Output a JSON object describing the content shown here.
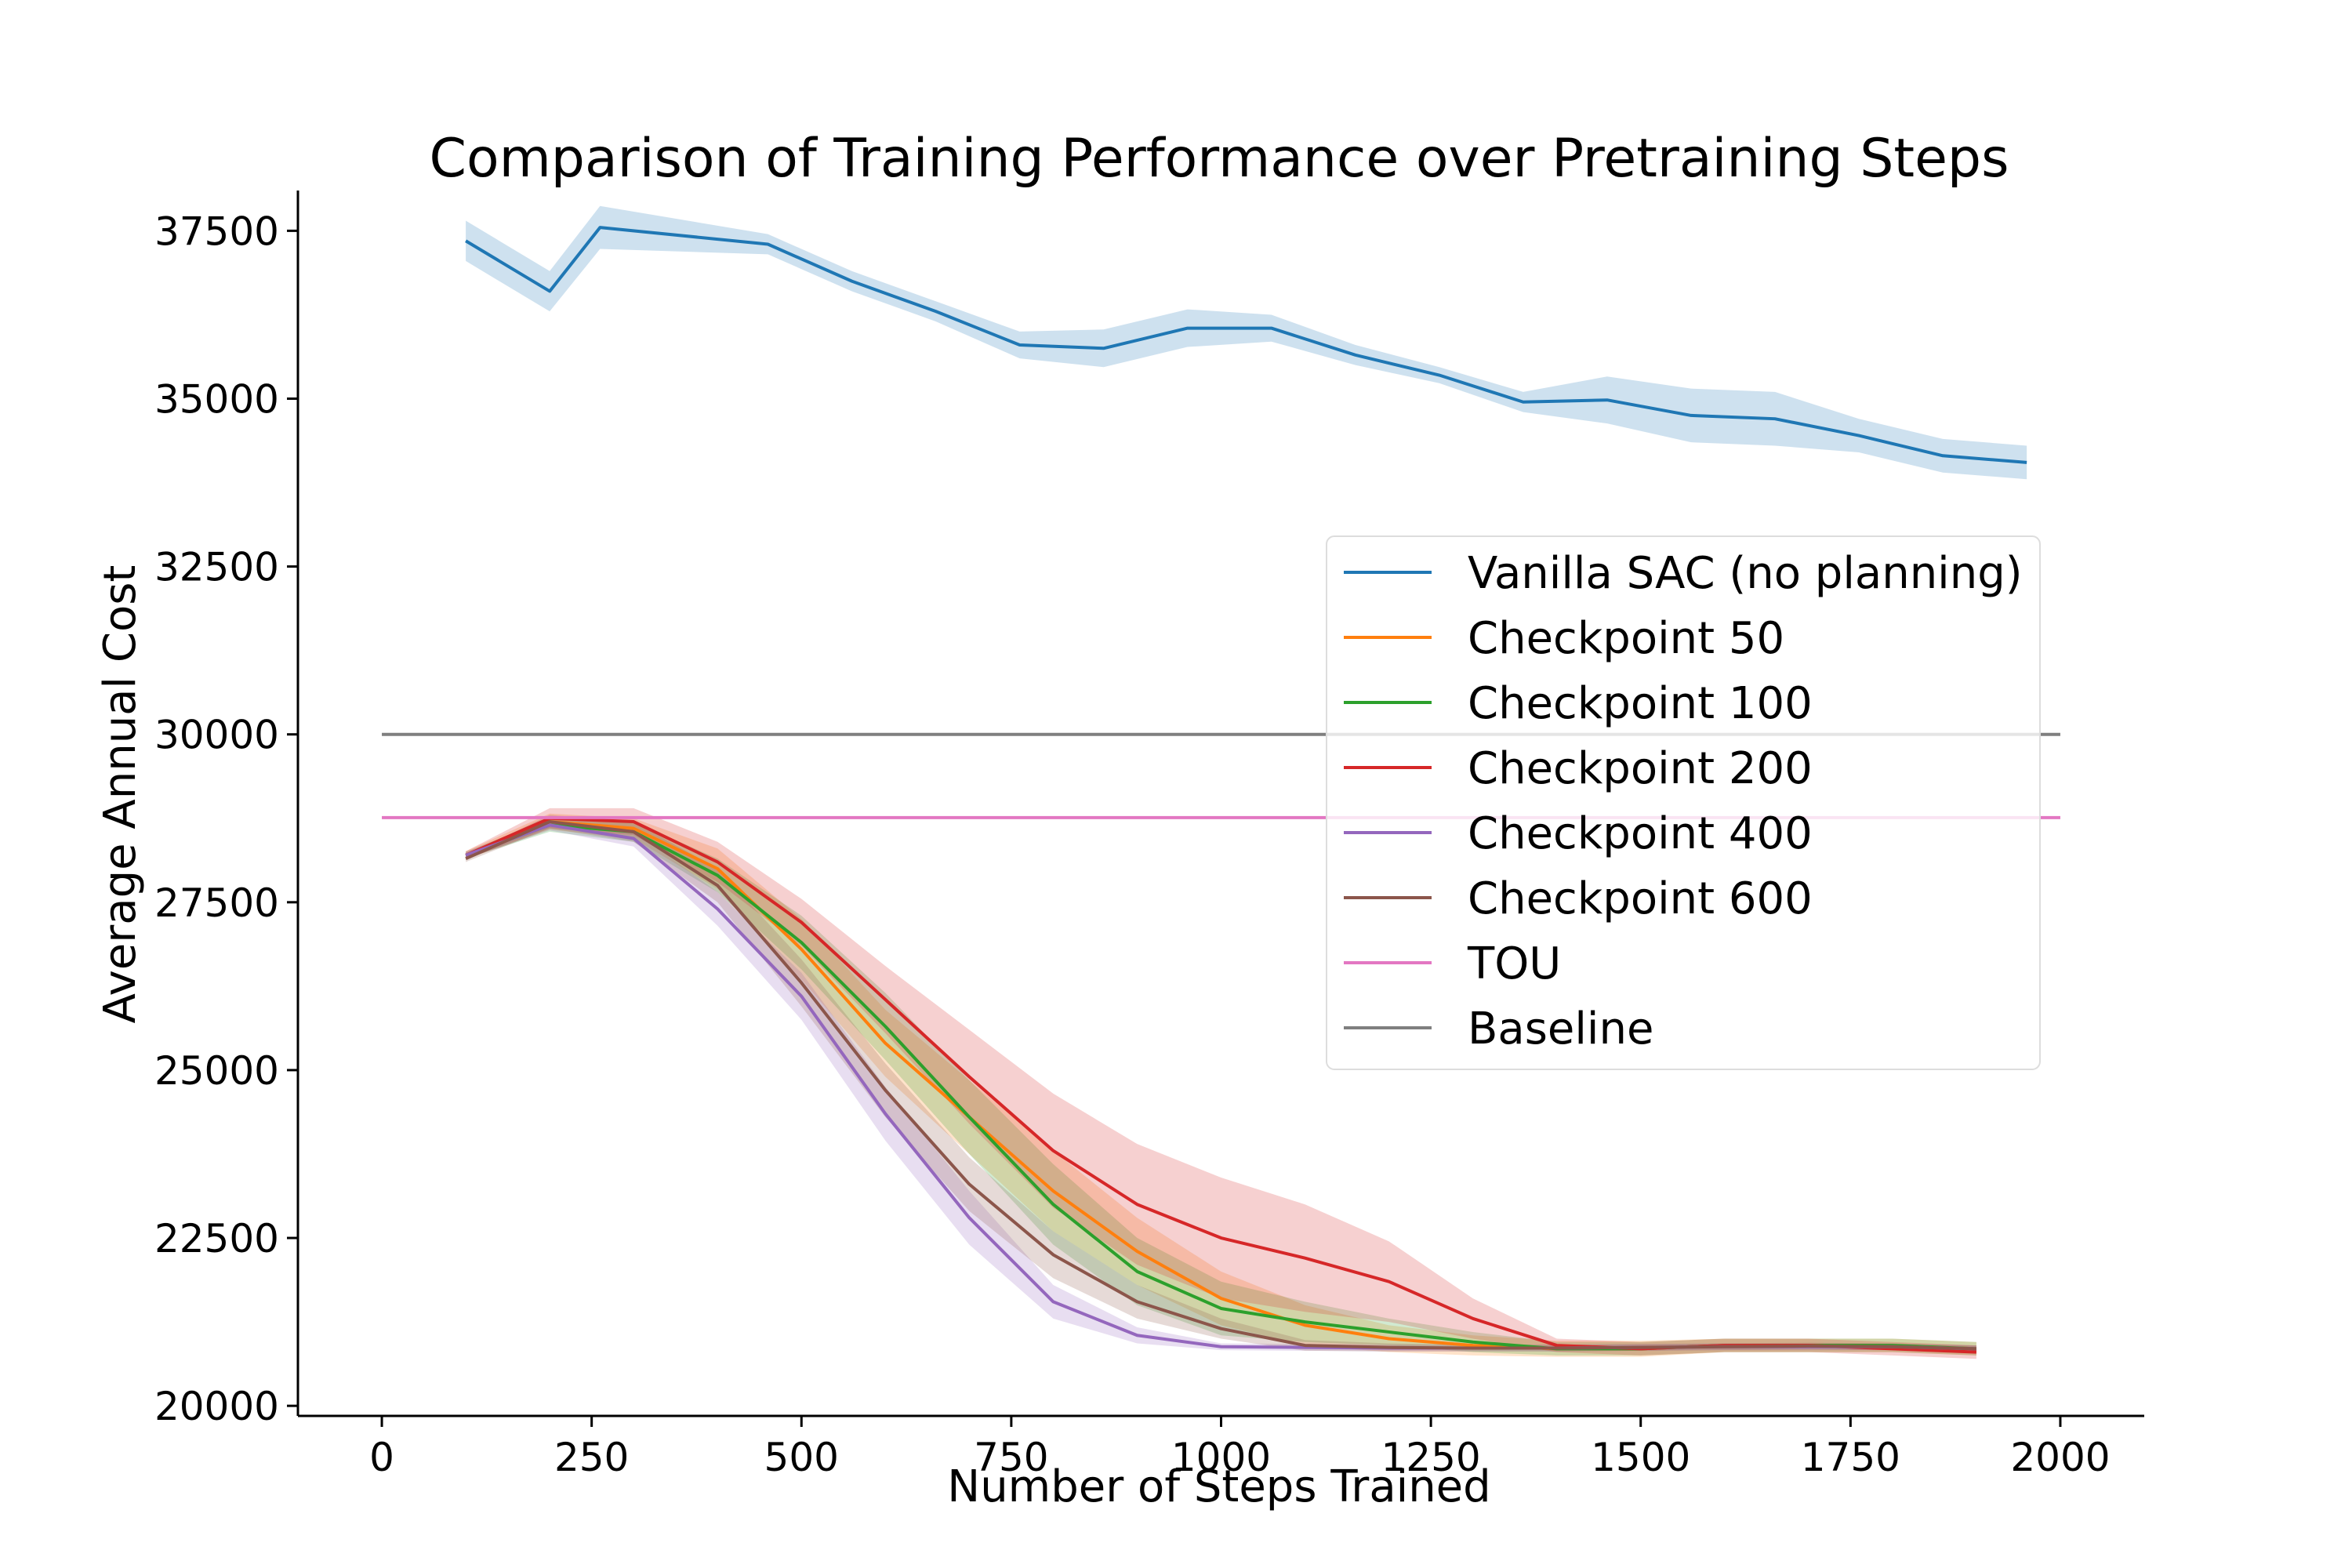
{
  "chart_data": {
    "type": "line",
    "title": "Comparison of Training Performance over Pretraining Steps",
    "xlabel": "Number of Steps Trained",
    "ylabel": "Average Annual Cost",
    "xlim": [
      -100,
      2100
    ],
    "ylim": [
      19850,
      38100
    ],
    "xticks": [
      0,
      250,
      500,
      750,
      1000,
      1250,
      1500,
      1750,
      2000
    ],
    "yticks": [
      20000,
      22500,
      25000,
      27500,
      30000,
      32500,
      35000,
      37500
    ],
    "legend_position": "center-right",
    "series": [
      {
        "name": "Vanilla SAC (no planning)",
        "color": "#1f77b4",
        "x": [
          100,
          200,
          260,
          460,
          560,
          660,
          760,
          860,
          960,
          1060,
          1160,
          1260,
          1360,
          1460,
          1560,
          1660,
          1760,
          1860,
          1960
        ],
        "y": [
          37350,
          36600,
          37550,
          37300,
          36750,
          36300,
          35800,
          35750,
          36050,
          36050,
          35650,
          35350,
          34950,
          34980,
          34750,
          34700,
          34450,
          34150,
          34050
        ],
        "band": [
          300,
          300,
          320,
          150,
          150,
          150,
          200,
          280,
          280,
          200,
          150,
          120,
          150,
          350,
          400,
          400,
          250,
          250,
          250
        ]
      },
      {
        "name": "Checkpoint 50",
        "color": "#ff7f0e",
        "x": [
          100,
          200,
          300,
          400,
          500,
          600,
          700,
          800,
          900,
          1000,
          1100,
          1200,
          1300,
          1400,
          1500,
          1600,
          1700,
          1800,
          1900
        ],
        "y": [
          28200,
          28700,
          28600,
          28000,
          26800,
          25400,
          24300,
          23200,
          22300,
          21600,
          21200,
          21000,
          20900,
          20850,
          20850,
          20900,
          20900,
          20900,
          20850
        ],
        "band": [
          60,
          120,
          150,
          300,
          450,
          500,
          550,
          600,
          500,
          400,
          300,
          200,
          150,
          120,
          120,
          100,
          100,
          100,
          100
        ]
      },
      {
        "name": "Checkpoint 100",
        "color": "#2ca02c",
        "x": [
          100,
          200,
          300,
          400,
          500,
          600,
          700,
          800,
          900,
          1000,
          1100,
          1200,
          1300,
          1400,
          1500,
          1600,
          1700,
          1800,
          1900
        ],
        "y": [
          28200,
          28650,
          28550,
          27900,
          26900,
          25650,
          24300,
          23000,
          22000,
          21450,
          21250,
          21100,
          20950,
          20850,
          20850,
          20900,
          20900,
          20900,
          20850
        ],
        "band": [
          50,
          100,
          150,
          250,
          400,
          500,
          550,
          600,
          500,
          400,
          300,
          200,
          150,
          100,
          100,
          100,
          100,
          100,
          100
        ]
      },
      {
        "name": "Checkpoint 200",
        "color": "#d62728",
        "x": [
          100,
          200,
          300,
          400,
          500,
          600,
          700,
          800,
          900,
          1000,
          1100,
          1200,
          1300,
          1400,
          1500,
          1600,
          1700,
          1800,
          1900
        ],
        "y": [
          28200,
          28750,
          28700,
          28100,
          27200,
          26050,
          24900,
          23800,
          23000,
          22500,
          22200,
          21850,
          21300,
          20900,
          20850,
          20900,
          20900,
          20850,
          20800
        ],
        "band": [
          60,
          150,
          200,
          300,
          350,
          500,
          700,
          850,
          900,
          900,
          800,
          600,
          300,
          100,
          100,
          100,
          100,
          100,
          100
        ]
      },
      {
        "name": "Checkpoint 400",
        "color": "#9467bd",
        "x": [
          100,
          200,
          300,
          400,
          500,
          600,
          700,
          800,
          900,
          1000,
          1100,
          1200,
          1300,
          1400,
          1500,
          1600,
          1700,
          1800,
          1900
        ],
        "y": [
          28200,
          28650,
          28450,
          27400,
          26100,
          24350,
          22800,
          21550,
          21050,
          20880,
          20870,
          20860,
          20860,
          20860,
          20870,
          20880,
          20880,
          20880,
          20850
        ],
        "band": [
          50,
          80,
          120,
          250,
          350,
          400,
          400,
          250,
          120,
          50,
          50,
          50,
          50,
          50,
          50,
          50,
          50,
          50,
          50
        ]
      },
      {
        "name": "Checkpoint 600",
        "color": "#8c564b",
        "x": [
          100,
          200,
          300,
          400,
          500,
          600,
          700,
          800,
          900,
          1000,
          1100,
          1200,
          1300,
          1400,
          1500,
          1600,
          1700,
          1800,
          1900
        ],
        "y": [
          28150,
          28700,
          28550,
          27750,
          26300,
          24700,
          23300,
          22250,
          21550,
          21150,
          20900,
          20870,
          20860,
          20860,
          20870,
          20880,
          20890,
          20880,
          20850
        ],
        "band": [
          50,
          100,
          150,
          250,
          350,
          400,
          400,
          350,
          250,
          150,
          80,
          60,
          50,
          50,
          50,
          50,
          50,
          50,
          50
        ]
      },
      {
        "name": "TOU",
        "color": "#e377c2",
        "x": [
          0,
          2000
        ],
        "y": [
          28760,
          28760
        ],
        "band": [
          0,
          0
        ]
      },
      {
        "name": "Baseline",
        "color": "#7f7f7f",
        "x": [
          0,
          2000
        ],
        "y": [
          30000,
          30000
        ],
        "band": [
          0,
          0
        ]
      }
    ]
  }
}
